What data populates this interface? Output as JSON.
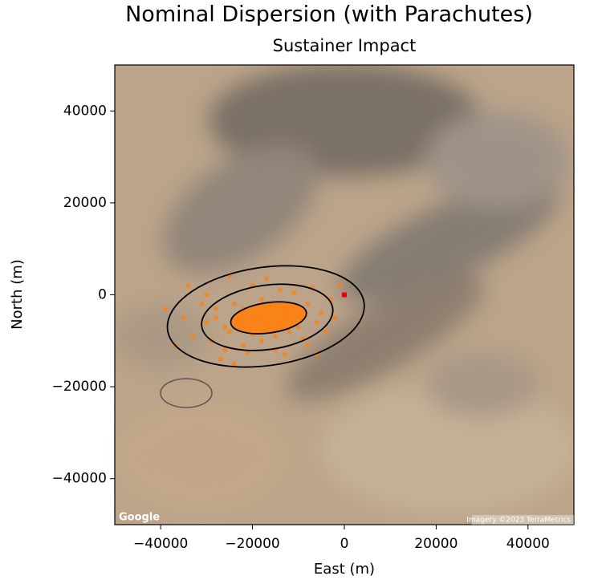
{
  "chart_data": {
    "type": "scatter",
    "title": "Nominal Dispersion (with Parachutes)",
    "subtitle": "Sustainer Impact",
    "x_label": "East (m)",
    "y_label": "North (m)",
    "xlim": [
      -50000,
      50000
    ],
    "ylim": [
      -50000,
      50000
    ],
    "xticks": [
      {
        "value": -40000,
        "label": "−40000"
      },
      {
        "value": -20000,
        "label": "−20000"
      },
      0,
      20000,
      40000
    ],
    "yticks": [
      {
        "value": -40000,
        "label": "−40000"
      },
      {
        "value": -20000,
        "label": "−20000"
      },
      0,
      20000,
      40000
    ],
    "points": {
      "color": "#ff7f0e",
      "x": [
        -20000,
        -12000,
        -25000,
        -8000,
        -30000,
        -15000,
        -18000,
        -22000,
        -5000,
        -28000,
        -10000,
        -14000,
        -26000,
        -3000,
        -33000,
        -17000,
        -19000,
        -13000,
        -21000,
        -16000,
        -24000,
        -9000,
        -11000,
        -29000,
        -6000,
        -35000,
        -20000,
        -7000,
        -27000,
        -15000,
        -23000,
        -12000,
        -18000,
        -31000,
        -4000,
        -1000,
        -37000,
        -25000,
        -16000,
        -14000,
        -20000,
        -10000,
        -22000,
        -8000,
        -30000,
        -17000,
        -13000,
        -26000,
        -19000,
        -11000,
        -39000,
        -2000,
        -24000,
        -34000,
        -21000,
        -6000,
        -28000,
        -15000,
        -18000,
        -12500
      ],
      "y": [
        -5000,
        -3000,
        -8000,
        -2000,
        -6000,
        -9000,
        -1000,
        -11000,
        -4000,
        -3000,
        -7000,
        1000,
        -12000,
        -1000,
        -9000,
        -6000,
        -3500,
        -5500,
        -7500,
        -4000,
        -2000,
        -9500,
        500,
        -10000,
        -6000,
        -5000,
        2000,
        1500,
        -14000,
        -12000,
        -5500,
        -8000,
        -10000,
        -2000,
        -8000,
        2000,
        -11000,
        4000,
        -2000,
        -6500,
        -8500,
        -4500,
        -3000,
        -11000,
        0,
        3500,
        -13000,
        -7000,
        -6800,
        -2500,
        -3000,
        -5000,
        -15000,
        2000,
        -12500,
        -13000,
        -5000,
        -7500,
        -4800,
        -4200
      ]
    },
    "launch": {
      "x": 0,
      "y": 0,
      "color": "#e8000b"
    },
    "ellipses": [
      {
        "cx": -16500,
        "cy": -5000,
        "rx": 8300,
        "ry": 3300,
        "angle": 8
      },
      {
        "cx": -16800,
        "cy": -4900,
        "rx": 14400,
        "ry": 7000,
        "angle": 8
      },
      {
        "cx": -17100,
        "cy": -4700,
        "rx": 21600,
        "ry": 10700,
        "angle": 8
      }
    ],
    "map_credit_left": "Google",
    "map_credit_right": "Imagery ©2023 TerraMetrics"
  }
}
